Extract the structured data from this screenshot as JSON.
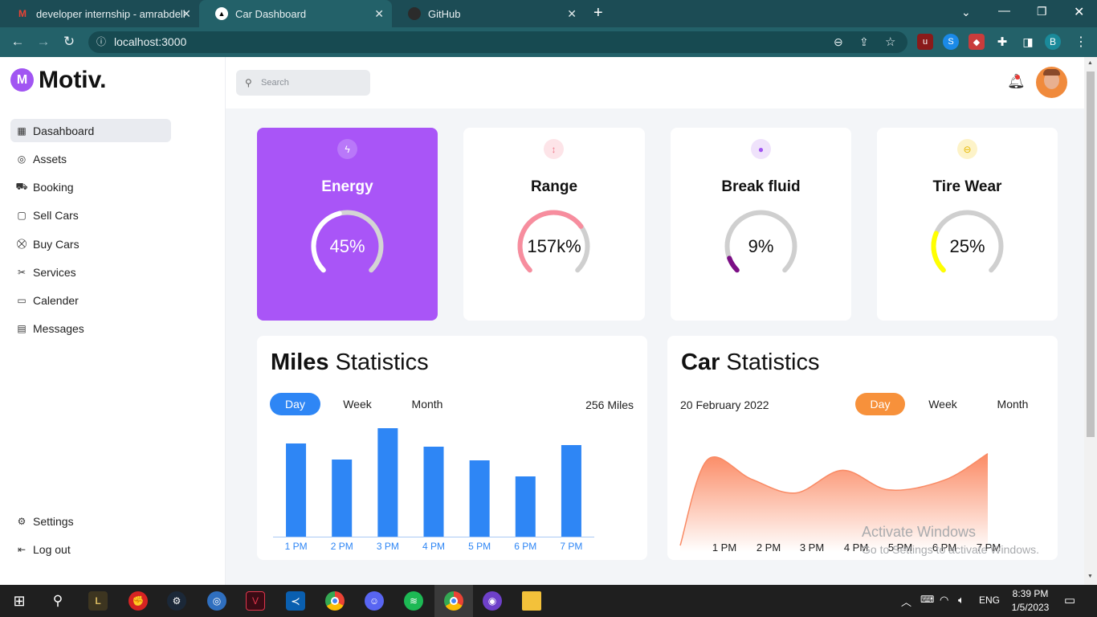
{
  "browser": {
    "tabs": [
      {
        "title": "developer internship - amrabdell"
      },
      {
        "title": "Car Dashboard"
      },
      {
        "title": "GitHub"
      }
    ],
    "url": "localhost:3000",
    "profile_letter": "B"
  },
  "app": {
    "logo_letter": "M",
    "logo_text": "Motiv.",
    "nav": [
      {
        "label": "Dasahboard",
        "icon": "grid-icon",
        "selected": true
      },
      {
        "label": "Assets",
        "icon": "assets-icon"
      },
      {
        "label": "Booking",
        "icon": "car-icon"
      },
      {
        "label": "Sell Cars",
        "icon": "bag-icon"
      },
      {
        "label": "Buy Cars",
        "icon": "cart-icon"
      },
      {
        "label": "Services",
        "icon": "tools-icon"
      },
      {
        "label": "Calender",
        "icon": "calendar-icon"
      },
      {
        "label": "Messages",
        "icon": "message-icon"
      }
    ],
    "bottom_nav": [
      {
        "label": "Settings",
        "icon": "gear-icon"
      },
      {
        "label": "Log out",
        "icon": "logout-icon"
      }
    ],
    "search_placeholder": "Search"
  },
  "stats": [
    {
      "title": "Energy",
      "value": "45%",
      "fraction": 0.45,
      "color": "#ffffff",
      "icon": "bolt-icon"
    },
    {
      "title": "Range",
      "value": "157k%",
      "fraction": 0.7,
      "color": "#f78d9e",
      "icon": "arrows-icon"
    },
    {
      "title": "Break fluid",
      "value": "9%",
      "fraction": 0.09,
      "color": "#7c0f86",
      "icon": "drop-icon"
    },
    {
      "title": "Tire Wear",
      "value": "25%",
      "fraction": 0.25,
      "color": "#ffff00",
      "icon": "tire-icon"
    }
  ],
  "miles": {
    "title_bold": "Miles",
    "title_rest": " Statistics",
    "tabs": [
      "Day",
      "Week",
      "Month"
    ],
    "summary": "256 Miles"
  },
  "car": {
    "title_bold": "Car",
    "title_rest": " Statistics",
    "date": "20 February 2022",
    "tabs": [
      "Day",
      "Week",
      "Month"
    ]
  },
  "watermark": {
    "line1": "Activate Windows",
    "line2": "Go to Settings to activate Windows."
  },
  "taskbar": {
    "lang": "ENG",
    "time": "8:39 PM",
    "date": "1/5/2023"
  },
  "chart_data": [
    {
      "type": "bar",
      "categories": [
        "1 PM",
        "2 PM",
        "3 PM",
        "4 PM",
        "5 PM",
        "6 PM",
        "7 PM"
      ],
      "values": [
        116,
        96,
        135,
        112,
        95,
        75,
        114
      ],
      "ylim": [
        0,
        140
      ],
      "grid": false
    },
    {
      "type": "area",
      "x": [
        "1 PM",
        "2 PM",
        "3 PM",
        "4 PM",
        "5 PM",
        "6 PM",
        "7 PM"
      ],
      "values": [
        122,
        96,
        78,
        108,
        82,
        95,
        130
      ],
      "ylim": [
        0,
        170
      ],
      "grid": false
    }
  ]
}
